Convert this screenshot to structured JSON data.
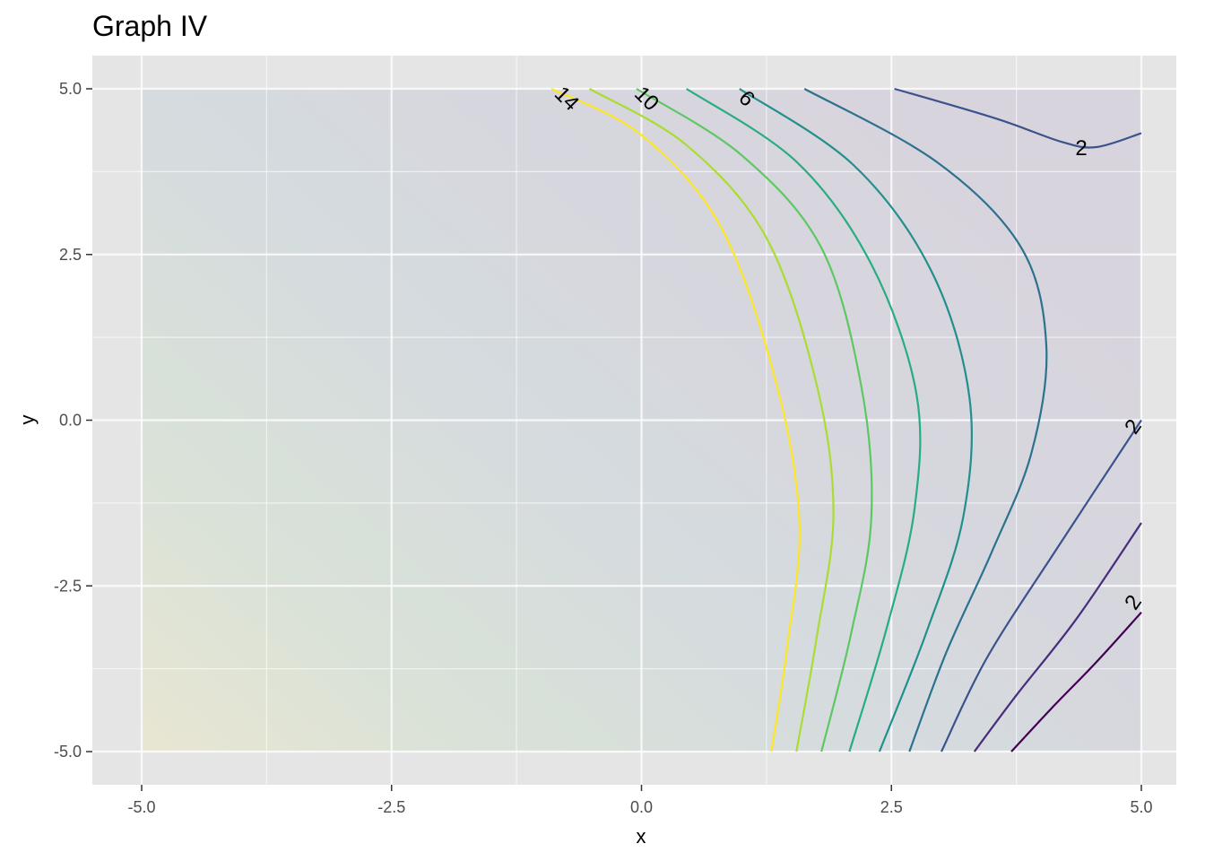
{
  "chart_data": {
    "type": "contour",
    "title": "Graph IV",
    "xlabel": "x",
    "ylabel": "y",
    "xlim": [
      -5,
      5
    ],
    "ylim": [
      -5,
      5
    ],
    "x_ticks": [
      -5.0,
      -2.5,
      0.0,
      2.5,
      5.0
    ],
    "y_ticks": [
      -5.0,
      -2.5,
      0.0,
      2.5,
      5.0
    ],
    "x_tick_labels": [
      "-5.0",
      "-2.5",
      "0.0",
      "2.5",
      "5.0"
    ],
    "y_tick_labels": [
      "-5.0",
      "-2.5",
      "0.0",
      "2.5",
      "5.0"
    ],
    "grid": true,
    "legend": "none",
    "fill_gradient": {
      "low_color": "#440154",
      "high_color": "#fde725",
      "description_of_direction": "high at lower-left, low at right"
    },
    "contours": [
      {
        "points": [
          [
            3.7,
            -5.0
          ],
          [
            4.1,
            -4.35
          ],
          [
            4.55,
            -3.65
          ],
          [
            5.0,
            -2.9
          ]
        ],
        "color": "#440154"
      },
      {
        "points": [
          [
            3.33,
            -5.0
          ],
          [
            3.75,
            -4.15
          ],
          [
            4.35,
            -3.0
          ],
          [
            5.0,
            -1.55
          ]
        ],
        "color": "#472d7b"
      },
      {
        "points": [
          [
            3.0,
            -5.0
          ],
          [
            3.45,
            -3.6
          ],
          [
            4.15,
            -1.95
          ],
          [
            5.0,
            0.0
          ]
        ],
        "color": "#3b528b"
      },
      {
        "points": [
          [
            2.53,
            5.0
          ],
          [
            3.55,
            4.55
          ],
          [
            4.2,
            4.2
          ],
          [
            4.55,
            4.12
          ],
          [
            5.0,
            4.33
          ]
        ],
        "color": "#3b528b"
      },
      {
        "points": [
          [
            1.63,
            5.0
          ],
          [
            2.95,
            3.9
          ],
          [
            3.8,
            2.6
          ],
          [
            4.05,
            1.1
          ],
          [
            3.9,
            -0.5
          ],
          [
            3.5,
            -2.0
          ],
          [
            3.05,
            -3.5
          ],
          [
            2.68,
            -5.0
          ]
        ],
        "color": "#2c728e"
      },
      {
        "points": [
          [
            0.98,
            5.0
          ],
          [
            2.12,
            3.85
          ],
          [
            2.9,
            2.25
          ],
          [
            3.28,
            0.35
          ],
          [
            3.22,
            -1.45
          ],
          [
            2.85,
            -3.2
          ],
          [
            2.38,
            -5.0
          ]
        ],
        "color": "#21908d"
      },
      {
        "points": [
          [
            0.45,
            5.0
          ],
          [
            1.55,
            3.9
          ],
          [
            2.3,
            2.35
          ],
          [
            2.75,
            0.4
          ],
          [
            2.73,
            -1.35
          ],
          [
            2.45,
            -3.15
          ],
          [
            2.08,
            -5.0
          ]
        ],
        "color": "#27ad81"
      },
      {
        "points": [
          [
            -0.05,
            5.0
          ],
          [
            1.0,
            4.0
          ],
          [
            1.8,
            2.6
          ],
          [
            2.2,
            0.5
          ],
          [
            2.3,
            -1.45
          ],
          [
            2.1,
            -3.2
          ],
          [
            1.8,
            -5.0
          ]
        ],
        "color": "#5dc863"
      },
      {
        "points": [
          [
            -0.52,
            5.0
          ],
          [
            0.45,
            4.15
          ],
          [
            1.25,
            2.75
          ],
          [
            1.75,
            0.55
          ],
          [
            1.92,
            -1.4
          ],
          [
            1.75,
            -3.3
          ],
          [
            1.55,
            -5.0
          ]
        ],
        "color": "#aadc32"
      },
      {
        "points": [
          [
            -0.9,
            5.0
          ],
          [
            0.0,
            4.3
          ],
          [
            0.8,
            2.9
          ],
          [
            1.35,
            0.55
          ],
          [
            1.58,
            -1.55
          ],
          [
            1.45,
            -3.5
          ],
          [
            1.3,
            -5.0
          ]
        ],
        "color": "#fde725"
      }
    ],
    "contour_labels": [
      {
        "text": "14",
        "x": -0.75,
        "y": 4.85,
        "angle": 45
      },
      {
        "text": "10",
        "x": 0.05,
        "y": 4.85,
        "angle": 45
      },
      {
        "text": "6",
        "x": 1.05,
        "y": 4.85,
        "angle": 45
      },
      {
        "text": "2",
        "x": 4.4,
        "y": 4.1,
        "angle": 0
      },
      {
        "text": "2",
        "x": 4.92,
        "y": -0.1,
        "angle": -55
      },
      {
        "text": "2",
        "x": 4.92,
        "y": -2.75,
        "angle": -55
      }
    ]
  }
}
